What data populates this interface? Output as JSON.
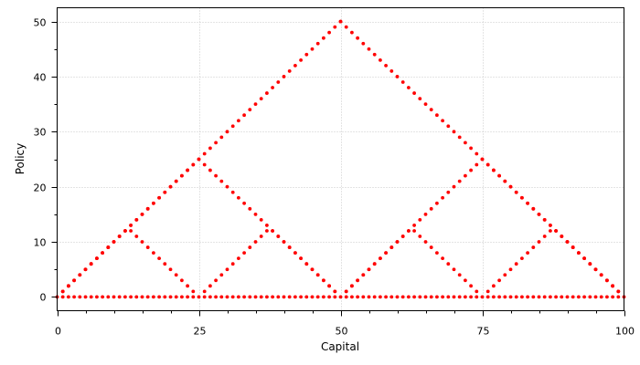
{
  "chart_data": {
    "type": "scatter",
    "xlabel": "Capital",
    "ylabel": "Policy",
    "xlim": [
      0,
      100
    ],
    "ylim": [
      -2.5,
      52.5
    ],
    "xticks": [
      0,
      25,
      50,
      75,
      100
    ],
    "yticks": [
      0,
      10,
      20,
      30,
      40,
      50
    ],
    "grid": true,
    "marker_color": "#ff0000",
    "series": [
      {
        "x": [
          1,
          2,
          3,
          4,
          5,
          6,
          7,
          8,
          9,
          10,
          11,
          12,
          13,
          14,
          15,
          16,
          17,
          18,
          19,
          20,
          21,
          22,
          23,
          24,
          25,
          26,
          27,
          28,
          29,
          30,
          31,
          32,
          33,
          34,
          35,
          36,
          37,
          38,
          39,
          40,
          41,
          42,
          43,
          44,
          45,
          46,
          47,
          48,
          49,
          50,
          51,
          52,
          53,
          54,
          55,
          56,
          57,
          58,
          59,
          60,
          61,
          62,
          63,
          64,
          65,
          66,
          67,
          68,
          69,
          70,
          71,
          72,
          73,
          74,
          75,
          76,
          77,
          78,
          79,
          80,
          81,
          82,
          83,
          84,
          85,
          86,
          87,
          88,
          89,
          90,
          91,
          92,
          93,
          94,
          95,
          96,
          97,
          98,
          99
        ],
        "y": [
          1,
          2,
          3,
          4,
          5,
          6,
          7,
          8,
          9,
          10,
          11,
          12,
          12,
          11,
          10,
          9,
          8,
          7,
          6,
          5,
          4,
          3,
          2,
          1,
          25,
          1,
          2,
          3,
          4,
          5,
          6,
          7,
          8,
          9,
          10,
          11,
          12,
          12,
          11,
          10,
          9,
          8,
          7,
          6,
          5,
          4,
          3,
          2,
          1,
          50,
          1,
          2,
          3,
          4,
          5,
          6,
          7,
          8,
          9,
          10,
          11,
          12,
          12,
          11,
          10,
          9,
          8,
          7,
          6,
          5,
          4,
          3,
          2,
          1,
          25,
          1,
          2,
          3,
          4,
          5,
          6,
          7,
          8,
          9,
          10,
          11,
          12,
          12,
          11,
          10,
          9,
          8,
          7,
          6,
          5,
          4,
          3,
          2,
          1
        ]
      },
      {
        "x": [
          1,
          2,
          3,
          4,
          5,
          6,
          7,
          8,
          9,
          10,
          11,
          12,
          13,
          14,
          15,
          16,
          17,
          18,
          19,
          20,
          21,
          22,
          23,
          24,
          25,
          26,
          27,
          28,
          29,
          30,
          31,
          32,
          33,
          34,
          35,
          36,
          37,
          38,
          39,
          40,
          41,
          42,
          43,
          44,
          45,
          46,
          47,
          48,
          49,
          50,
          51,
          52,
          53,
          54,
          55,
          56,
          57,
          58,
          59,
          60,
          61,
          62,
          63,
          64,
          65,
          66,
          67,
          68,
          69,
          70,
          71,
          72,
          73,
          74,
          75,
          76,
          77,
          78,
          79,
          80,
          81,
          82,
          83,
          84,
          85,
          86,
          87,
          88,
          89,
          90,
          91,
          92,
          93,
          94,
          95,
          96,
          97,
          98,
          99
        ],
        "y": [
          1,
          2,
          3,
          4,
          5,
          6,
          7,
          8,
          9,
          10,
          11,
          12,
          13,
          14,
          15,
          16,
          17,
          18,
          19,
          20,
          21,
          22,
          23,
          24,
          25,
          24,
          23,
          22,
          21,
          20,
          19,
          18,
          17,
          16,
          15,
          14,
          13,
          12,
          11,
          10,
          9,
          8,
          7,
          6,
          5,
          4,
          3,
          2,
          1,
          50,
          1,
          2,
          3,
          4,
          5,
          6,
          7,
          8,
          9,
          10,
          11,
          12,
          13,
          14,
          15,
          16,
          17,
          18,
          19,
          20,
          21,
          22,
          23,
          24,
          25,
          24,
          23,
          22,
          21,
          20,
          19,
          18,
          17,
          16,
          15,
          14,
          13,
          12,
          11,
          10,
          9,
          8,
          7,
          6,
          5,
          4,
          3,
          2,
          1
        ]
      },
      {
        "x": [
          1,
          2,
          3,
          4,
          5,
          6,
          7,
          8,
          9,
          10,
          11,
          12,
          13,
          14,
          15,
          16,
          17,
          18,
          19,
          20,
          21,
          22,
          23,
          24,
          25,
          26,
          27,
          28,
          29,
          30,
          31,
          32,
          33,
          34,
          35,
          36,
          37,
          38,
          39,
          40,
          41,
          42,
          43,
          44,
          45,
          46,
          47,
          48,
          49,
          50,
          51,
          52,
          53,
          54,
          55,
          56,
          57,
          58,
          59,
          60,
          61,
          62,
          63,
          64,
          65,
          66,
          67,
          68,
          69,
          70,
          71,
          72,
          73,
          74,
          75,
          76,
          77,
          78,
          79,
          80,
          81,
          82,
          83,
          84,
          85,
          86,
          87,
          88,
          89,
          90,
          91,
          92,
          93,
          94,
          95,
          96,
          97,
          98,
          99
        ],
        "y": [
          1,
          2,
          3,
          4,
          5,
          6,
          7,
          8,
          9,
          10,
          11,
          12,
          13,
          14,
          15,
          16,
          17,
          18,
          19,
          20,
          21,
          22,
          23,
          24,
          25,
          26,
          27,
          28,
          29,
          30,
          31,
          32,
          33,
          34,
          35,
          36,
          37,
          38,
          39,
          40,
          41,
          42,
          43,
          44,
          45,
          46,
          47,
          48,
          49,
          50,
          49,
          48,
          47,
          46,
          45,
          44,
          43,
          42,
          41,
          40,
          39,
          38,
          37,
          36,
          35,
          34,
          33,
          32,
          31,
          30,
          29,
          28,
          27,
          26,
          25,
          24,
          23,
          22,
          21,
          20,
          19,
          18,
          17,
          16,
          15,
          14,
          13,
          12,
          11,
          10,
          9,
          8,
          7,
          6,
          5,
          4,
          3,
          2,
          1
        ]
      },
      {
        "x": [
          0,
          1,
          2,
          3,
          4,
          5,
          6,
          7,
          8,
          9,
          10,
          11,
          12,
          13,
          14,
          15,
          16,
          17,
          18,
          19,
          20,
          21,
          22,
          23,
          24,
          25,
          26,
          27,
          28,
          29,
          30,
          31,
          32,
          33,
          34,
          35,
          36,
          37,
          38,
          39,
          40,
          41,
          42,
          43,
          44,
          45,
          46,
          47,
          48,
          49,
          50,
          51,
          52,
          53,
          54,
          55,
          56,
          57,
          58,
          59,
          60,
          61,
          62,
          63,
          64,
          65,
          66,
          67,
          68,
          69,
          70,
          71,
          72,
          73,
          74,
          75,
          76,
          77,
          78,
          79,
          80,
          81,
          82,
          83,
          84,
          85,
          86,
          87,
          88,
          89,
          90,
          91,
          92,
          93,
          94,
          95,
          96,
          97,
          98,
          99,
          100
        ],
        "y": [
          0,
          0,
          0,
          0,
          0,
          0,
          0,
          0,
          0,
          0,
          0,
          0,
          0,
          0,
          0,
          0,
          0,
          0,
          0,
          0,
          0,
          0,
          0,
          0,
          0,
          0,
          0,
          0,
          0,
          0,
          0,
          0,
          0,
          0,
          0,
          0,
          0,
          0,
          0,
          0,
          0,
          0,
          0,
          0,
          0,
          0,
          0,
          0,
          0,
          0,
          0,
          0,
          0,
          0,
          0,
          0,
          0,
          0,
          0,
          0,
          0,
          0,
          0,
          0,
          0,
          0,
          0,
          0,
          0,
          0,
          0,
          0,
          0,
          0,
          0,
          0,
          0,
          0,
          0,
          0,
          0,
          0,
          0,
          0,
          0,
          0,
          0,
          0,
          0,
          0,
          0,
          0,
          0,
          0,
          0,
          0,
          0,
          0,
          0,
          0,
          0
        ]
      }
    ]
  }
}
